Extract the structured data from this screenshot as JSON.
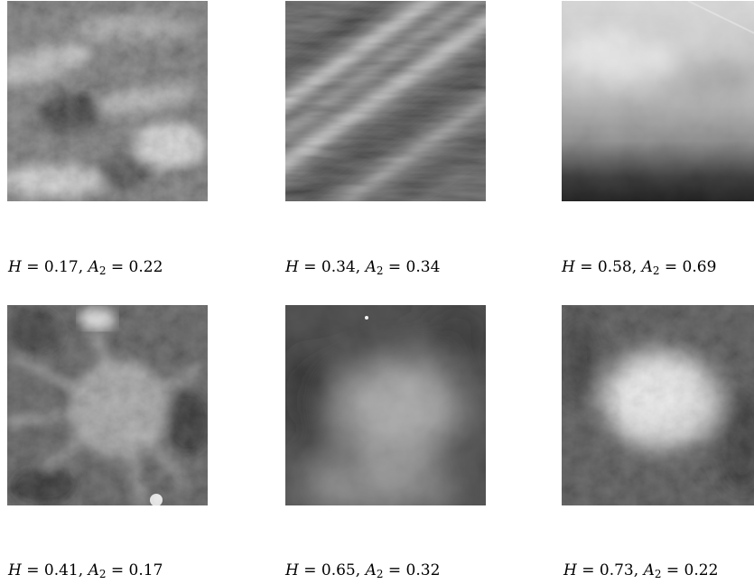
{
  "panels": [
    {
      "H": "0.17",
      "A2": "0.22"
    },
    {
      "H": "0.34",
      "A2": "0.34"
    },
    {
      "H": "0.58",
      "A2": "0.69"
    },
    {
      "H": "0.41",
      "A2": "0.17"
    },
    {
      "H": "0.65",
      "A2": "0.32"
    },
    {
      "H": "0.73",
      "A2": "0.22"
    }
  ],
  "labels": {
    "H_symbol": "H",
    "A_symbol": "A",
    "A_subscript": "2",
    "equals": " = ",
    "separator": ", "
  }
}
